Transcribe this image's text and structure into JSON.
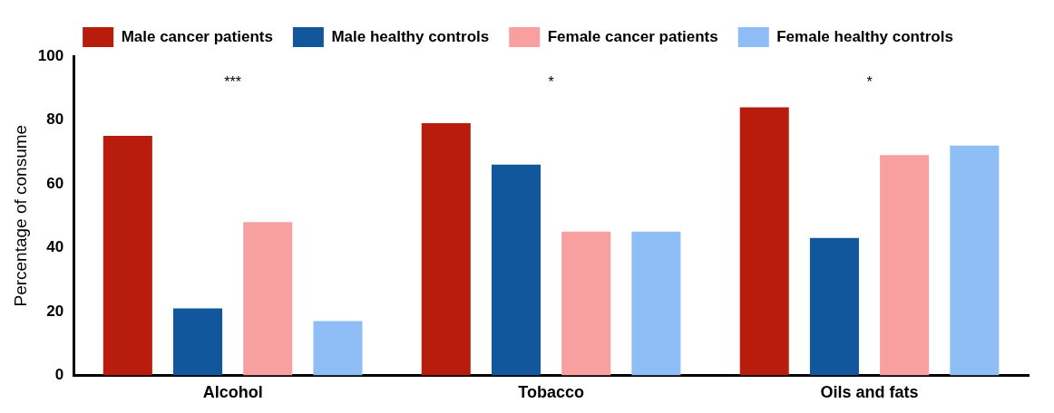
{
  "chart_data": {
    "type": "bar",
    "ylabel": "Percentage of consume",
    "categories": [
      "Alcohol",
      "Tobacco",
      "Oils and fats"
    ],
    "series": [
      {
        "name": "Male cancer patients",
        "color": "#b71c0c",
        "values": [
          75,
          79,
          84
        ]
      },
      {
        "name": "Male healthy controls",
        "color": "#12569b",
        "values": [
          21,
          66,
          43
        ]
      },
      {
        "name": "Female cancer patients",
        "color": "#f8a0a0",
        "values": [
          48,
          45,
          69
        ]
      },
      {
        "name": "Female healthy controls",
        "color": "#8fbdf5",
        "values": [
          17,
          45,
          72
        ]
      }
    ],
    "ylim": [
      0,
      100
    ],
    "yticks": [
      0,
      20,
      40,
      60,
      80,
      100
    ],
    "grid": false,
    "legend": "top",
    "annotations": [
      "***",
      "*",
      "*"
    ]
  }
}
